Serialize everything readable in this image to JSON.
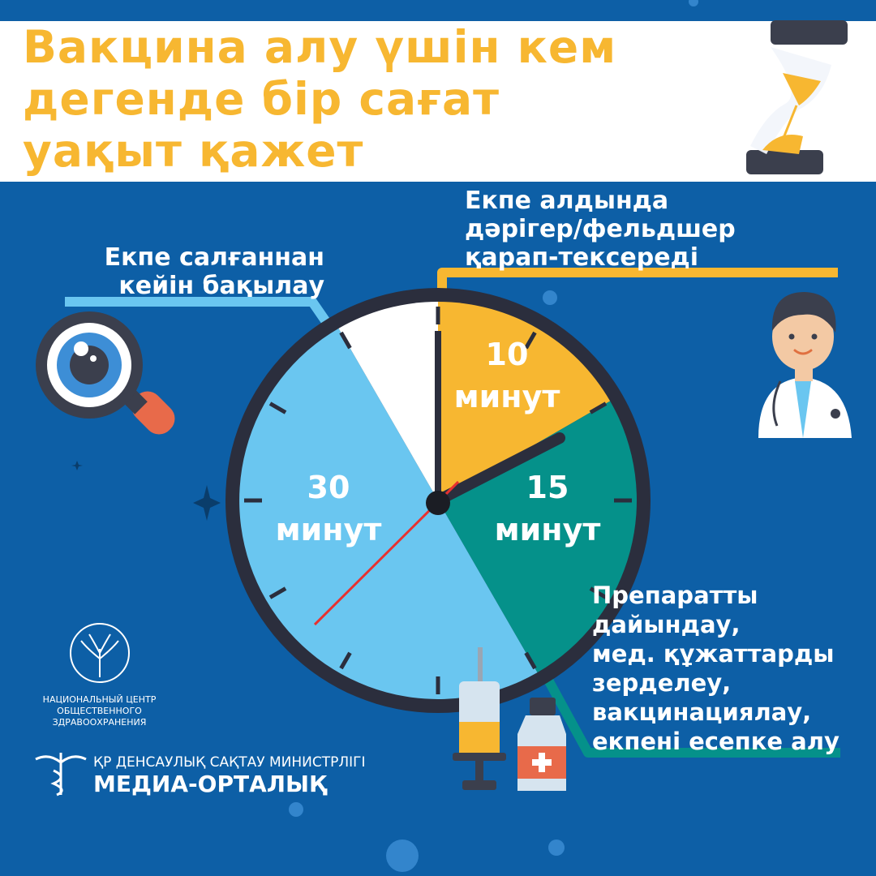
{
  "title": {
    "line1": "Вакцина алу үшін кем",
    "line2": "дегенде бір сағат",
    "line3": "уақыт қажет"
  },
  "labels": {
    "before": [
      "Екпе алдында",
      "дәрігер/фельдшер",
      "қарап-тексереді"
    ],
    "after": [
      "Екпе салғаннан",
      "кейін бақылау"
    ],
    "prep": [
      "Препаратты",
      "дайындау,",
      "мед. құжаттарды",
      "зерделеу,",
      "вакцинациялау,",
      "екпені есепке алу"
    ]
  },
  "chart_data": {
    "type": "pie",
    "slices": [
      {
        "value": 10,
        "label_number": "10",
        "label_unit": "минут",
        "color": "#f7b731"
      },
      {
        "value": 15,
        "label_number": "15",
        "label_unit": "минут",
        "color": "#05918a"
      },
      {
        "value": 30,
        "label_number": "30",
        "label_unit": "минут",
        "color": "#6ac6f0"
      },
      {
        "value": 5,
        "color": "#ffffff"
      }
    ],
    "total_minutes": 60
  },
  "colors": {
    "background": "#0d5fa6",
    "accent": "#f7b731",
    "clock_ring": "#2b2e3d"
  },
  "icons": [
    "hourglass-icon",
    "doctor-icon",
    "magnifier-eye-icon",
    "syringe-icon",
    "vial-icon",
    "star-icon",
    "virus-icon"
  ],
  "org": {
    "center_line1": "НАЦИОНАЛЬНЫЙ ЦЕНТР",
    "center_line2": "ОБЩЕСТВЕННОГО",
    "center_line3": "ЗДРАВООХРАНЕНИЯ",
    "ministry": "ҚР ДЕНСАУЛЫҚ САҚТАУ МИНИСТРЛІГІ",
    "media": "МЕДИА-ОРТАЛЫҚ"
  }
}
